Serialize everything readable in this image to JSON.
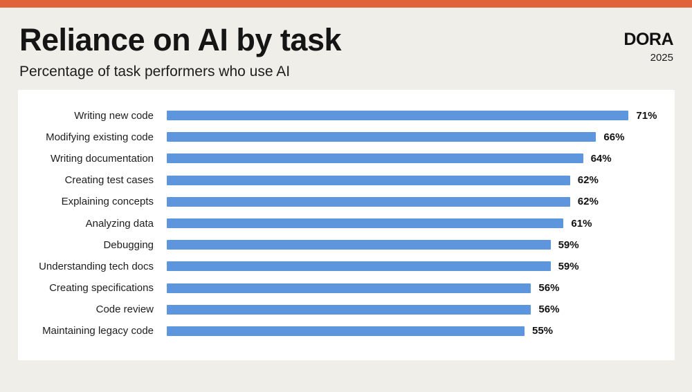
{
  "page": {
    "background_color": "#F0EEE9",
    "accent_bar_color": "#E0633C",
    "panel_color": "#FFFFFF"
  },
  "header": {
    "title": "Reliance on AI by task",
    "subtitle": "Percentage of task performers who use AI",
    "brand": {
      "name": "DORA",
      "year": "2025"
    }
  },
  "chart_data": {
    "type": "bar",
    "orientation": "horizontal",
    "title": "Reliance on AI by task",
    "subtitle": "Percentage of task performers who use AI",
    "categories": [
      "Writing new code",
      "Modifying existing code",
      "Writing documentation",
      "Creating test cases",
      "Explaining concepts",
      "Analyzing data",
      "Debugging",
      "Understanding tech docs",
      "Creating specifications",
      "Code review",
      "Maintaining legacy code"
    ],
    "values": [
      71,
      66,
      64,
      62,
      62,
      61,
      59,
      59,
      56,
      56,
      55
    ],
    "value_suffix": "%",
    "bar_color": "#5E96DE",
    "xlim": [
      0,
      78
    ],
    "grid": false,
    "legend": false,
    "value_labels": "end-of-bar"
  }
}
